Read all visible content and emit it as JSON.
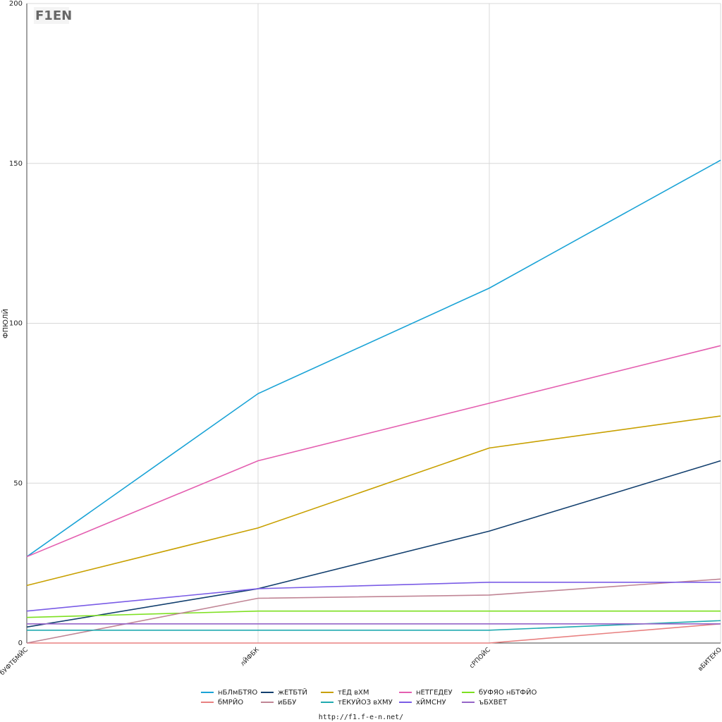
{
  "chart_data": {
    "type": "line",
    "logo": "F1EN",
    "footer": "http://f1.f-e-n.net/",
    "y_label": "ФПЮЛЙ",
    "categories": [
      "бУФТБМЙС",
      "лЙФБК",
      "сРПОЙС",
      "вБИТЕКО"
    ],
    "ylim": [
      0,
      200
    ],
    "yticks": [
      0,
      50,
      100,
      150,
      200
    ],
    "grid": true,
    "series": [
      {
        "name": "нБЛмБТЯО",
        "color": "#1aa3d6",
        "values": [
          27,
          78,
          111,
          151
        ]
      },
      {
        "name": "жЕТБТЙ",
        "color": "#123f6e",
        "values": [
          5,
          17,
          35,
          57
        ]
      },
      {
        "name": "тЕД вХМ",
        "color": "#c8a000",
        "values": [
          18,
          36,
          61,
          71
        ]
      },
      {
        "name": "нЕТГЕДЕУ",
        "color": "#e45fb0",
        "values": [
          27,
          57,
          75,
          93
        ]
      },
      {
        "name": "бУФЯО нБТФЙО",
        "color": "#7de020",
        "values": [
          8,
          10,
          10,
          10
        ]
      },
      {
        "name": "бМРЙО",
        "color": "#e88080",
        "values": [
          0,
          0,
          0,
          6
        ]
      },
      {
        "name": "иББУ",
        "color": "#c08595",
        "values": [
          0,
          14,
          15,
          20
        ]
      },
      {
        "name": "тЕКУЙОЗ вХМУ",
        "color": "#20aab0",
        "values": [
          4,
          4,
          4,
          7
        ]
      },
      {
        "name": "хЙМСНУ",
        "color": "#7a5ce6",
        "values": [
          10,
          17,
          19,
          19
        ]
      },
      {
        "name": "ъБХВЕТ",
        "color": "#9565c8",
        "values": [
          6,
          6,
          6,
          6
        ]
      }
    ]
  }
}
